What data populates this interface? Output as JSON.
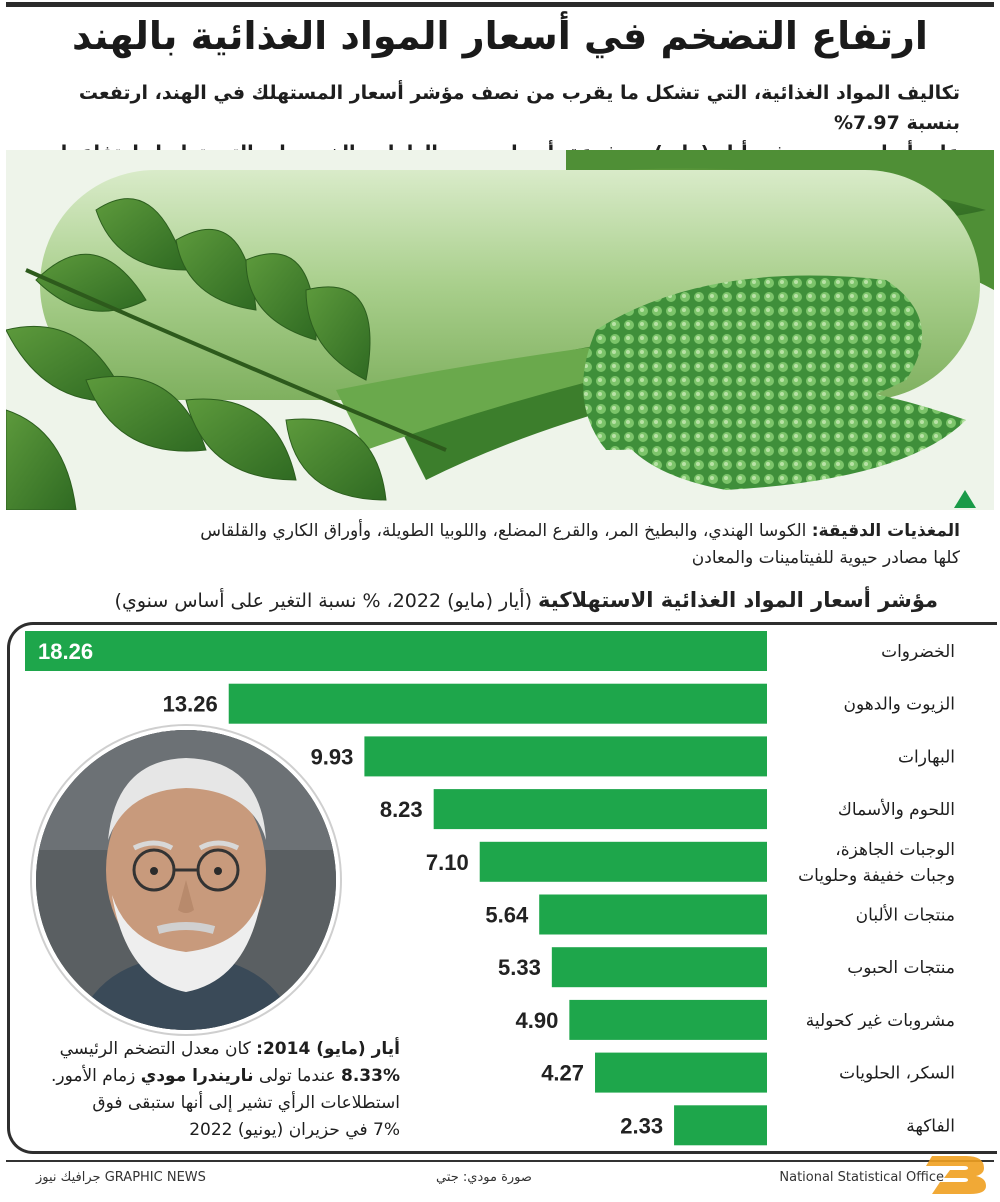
{
  "title": "ارتفاع التضخم في أسعار المواد الغذائية بالهند",
  "intro": {
    "line1": "تكاليف المواد الغذائية، التي تشكل ما يقرب من نصف مؤشر أسعار المستهلك في الهند، ارتفعت بنسبة 7.97%",
    "line2": "على أساس سنوي في أيار (مايو)، مدفوعة بأسعار زيوت الطعام والخضروات التي تواصل ارتفاعها"
  },
  "caption": {
    "lead": "المغذيات الدقيقة:",
    "line1": " الكوسا الهندي، والبطيخ المر، والقرع المضلع، واللوبيا الطويلة، وأوراق الكاري والقلقاس",
    "line2": "كلها مصادر حيوية للفيتامينات والمعادن"
  },
  "chart_title": {
    "bold": "مؤشر أسعار المواد الغذائية الاستهلاكية",
    "rest": " (أيار (مايو) 2022، % نسبة التغير على أساس سنوي)"
  },
  "chart_data": {
    "type": "bar",
    "orientation": "horizontal",
    "title": "مؤشر أسعار المواد الغذائية الاستهلاكية (أيار (مايو) 2022، % نسبة التغير على أساس سنوي)",
    "categories": [
      "الخضروات",
      "الزيوت والدهون",
      "البهارات",
      "اللحوم والأسماك",
      "الوجبات الجاهزة، وجبات خفيفة وحلويات",
      "منتجات الألبان",
      "منتجات الحبوب",
      "مشروبات غير كحولية",
      "السكر، الحلويات",
      "الفاكهة"
    ],
    "category_lines": [
      [
        "الخضروات"
      ],
      [
        "الزيوت والدهون"
      ],
      [
        "البهارات"
      ],
      [
        "اللحوم والأسماك"
      ],
      [
        "الوجبات الجاهزة،",
        "وجبات خفيفة وحلويات"
      ],
      [
        "منتجات الألبان"
      ],
      [
        "منتجات الحبوب"
      ],
      [
        "مشروبات غير كحولية"
      ],
      [
        "السكر، الحلويات"
      ],
      [
        "الفاكهة"
      ]
    ],
    "value_labels": [
      "18.26",
      "13.26",
      "9.93",
      "8.23",
      "7.10",
      "5.64",
      "5.33",
      "4.90",
      "4.27",
      "2.33"
    ],
    "values": [
      18.26,
      13.26,
      9.93,
      8.23,
      7.1,
      5.64,
      5.33,
      4.9,
      4.27,
      2.33
    ],
    "xlim": [
      0,
      18.26
    ],
    "grid": false,
    "bar_color": "#1ea64b"
  },
  "note": {
    "lead": "أيار (مايو) 2014:",
    "t1": " كان معدل التضخم الرئيسي",
    "pct": "8.33%",
    "t2": " عندما تولى ",
    "name": "ناريندرا مودي",
    "t3": " زمام الأمور.",
    "t4": "استطلاعات الرأي تشير إلى أنها ستبقى فوق",
    "t5": "7% في حزيران (يونيو) 2022"
  },
  "footer": {
    "left": "GRAPHIC NEWS جرافيك نيوز",
    "middle": "صورة مودي: جتي",
    "right": "National Statistical Office"
  },
  "colors": {
    "bar": "#1ea64b",
    "frame": "#2e2e2e",
    "arrow": "#1a9a48",
    "logo": "#f0a020"
  },
  "icons": {
    "caption_marker": "triangle-up-icon",
    "brand_logo": "news-logo-icon"
  }
}
